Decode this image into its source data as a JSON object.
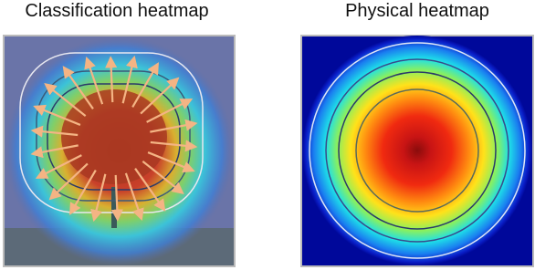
{
  "panels": [
    {
      "title": "Classification heatmap"
    },
    {
      "title": "Physical heatmap"
    }
  ]
}
